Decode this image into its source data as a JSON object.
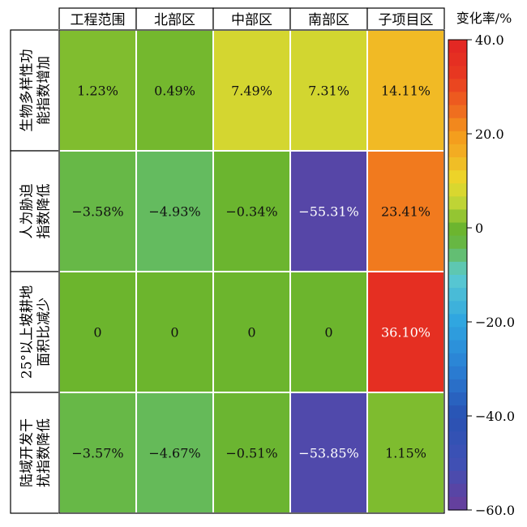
{
  "chart_data": {
    "type": "heatmap",
    "columns": [
      "工程范围",
      "北部区",
      "中部区",
      "南部区",
      "子项目区"
    ],
    "rows": [
      {
        "label_lines": [
          "生物多样性功",
          "能指数增加"
        ],
        "values": [
          1.23,
          0.49,
          7.49,
          7.31,
          14.11
        ]
      },
      {
        "label_lines": [
          "人为胁迫",
          "指数降低"
        ],
        "values": [
          -3.58,
          -4.93,
          -0.34,
          -55.31,
          23.41
        ]
      },
      {
        "label_lines": [
          "25°以上坡耕地",
          "面积比减少"
        ],
        "values": [
          0,
          0,
          0,
          0,
          36.1
        ]
      },
      {
        "label_lines": [
          "陆域开发干",
          "扰指数降低"
        ],
        "values": [
          -3.57,
          -4.67,
          -0.51,
          -53.85,
          1.15
        ]
      }
    ],
    "cell_labels": [
      [
        "1.23%",
        "0.49%",
        "7.49%",
        "7.31%",
        "14.11%"
      ],
      [
        "−3.58%",
        "−4.93%",
        "−0.34%",
        "−55.31%",
        "23.41%"
      ],
      [
        "0",
        "0",
        "0",
        "0",
        "36.10%"
      ],
      [
        "−3.57%",
        "−4.67%",
        "−0.51%",
        "−53.85%",
        "1.15%"
      ]
    ],
    "colorbar": {
      "title": "变化率/%",
      "range": [
        -60,
        40
      ],
      "ticks": [
        {
          "value": 40,
          "label": "40.0"
        },
        {
          "value": 20,
          "label": "20.0"
        },
        {
          "value": 0,
          "label": "0"
        },
        {
          "value": -20,
          "label": "−20.0"
        },
        {
          "value": -40,
          "label": "−40.0"
        },
        {
          "value": -60,
          "label": "−60.0"
        }
      ],
      "bins": 36,
      "stops": [
        {
          "value": -60,
          "color": "#6a3d9a"
        },
        {
          "value": -50,
          "color": "#3f51b5"
        },
        {
          "value": -40,
          "color": "#2952b3"
        },
        {
          "value": -30,
          "color": "#2a7fd4"
        },
        {
          "value": -20,
          "color": "#2fa5e0"
        },
        {
          "value": -10,
          "color": "#5ccbd0"
        },
        {
          "value": -4,
          "color": "#66b84a"
        },
        {
          "value": 0,
          "color": "#6cb52d"
        },
        {
          "value": 5,
          "color": "#bcd436"
        },
        {
          "value": 10,
          "color": "#ecd92a"
        },
        {
          "value": 15,
          "color": "#f2b324"
        },
        {
          "value": 20,
          "color": "#f49a1c"
        },
        {
          "value": 25,
          "color": "#ef6b1f"
        },
        {
          "value": 32,
          "color": "#e83a20"
        },
        {
          "value": 40,
          "color": "#e22424"
        }
      ]
    }
  }
}
